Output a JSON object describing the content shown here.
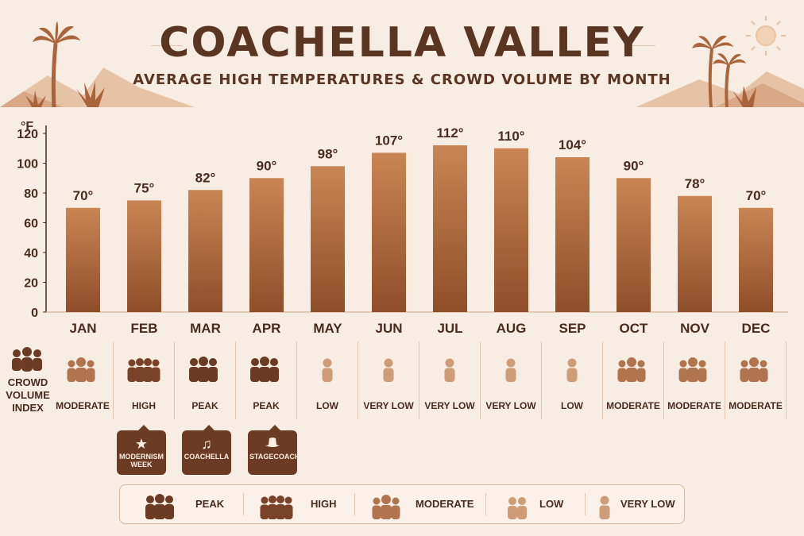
{
  "header": {
    "title": "COACHELLA VALLEY",
    "subtitle": "AVERAGE HIGH TEMPERATURES & CROWD VOLUME BY MONTH"
  },
  "colors": {
    "bar_top": "#c98553",
    "bar_bottom": "#8f4e2a",
    "peak": "#6b3b23",
    "high": "#7a4329",
    "moderate": "#b0744f",
    "low": "#cf9c78",
    "very_low": "#cf9c78",
    "background": "#f8ede3"
  },
  "chart_data": {
    "type": "bar",
    "title": "COACHELLA VALLEY",
    "subtitle": "AVERAGE HIGH TEMPERATURES & CROWD VOLUME BY MONTH",
    "ylabel": "°F",
    "xlabel": "",
    "ylim": [
      0,
      120
    ],
    "yticks": [
      0,
      20,
      40,
      60,
      80,
      100,
      120
    ],
    "categories": [
      "JAN",
      "FEB",
      "MAR",
      "APR",
      "MAY",
      "JUN",
      "JUL",
      "AUG",
      "SEP",
      "OCT",
      "NOV",
      "DEC"
    ],
    "values": [
      70,
      75,
      82,
      90,
      98,
      107,
      112,
      110,
      104,
      90,
      78,
      70
    ],
    "value_labels": [
      "70°",
      "75°",
      "82°",
      "90°",
      "98°",
      "107°",
      "112°",
      "110°",
      "104°",
      "90°",
      "78°",
      "70°"
    ],
    "grid": false
  },
  "crowd": {
    "label_lines": [
      "CROWD",
      "VOLUME",
      "INDEX"
    ],
    "levels": [
      "MODERATE",
      "HIGH",
      "PEAK",
      "PEAK",
      "LOW",
      "VERY LOW",
      "VERY LOW",
      "VERY LOW",
      "LOW",
      "MODERATE",
      "MODERATE",
      "MODERATE"
    ],
    "icons": [
      "moderate-crowd-icon",
      "high-crowd-icon",
      "peak-crowd-icon",
      "peak-crowd-icon",
      "low-crowd-icon",
      "very-low-crowd-icon",
      "very-low-crowd-icon",
      "very-low-crowd-icon",
      "low-crowd-icon",
      "moderate-crowd-icon",
      "moderate-crowd-icon",
      "moderate-crowd-icon"
    ]
  },
  "events": [
    {
      "label_1": "MODERNISM",
      "label_2": "WEEK",
      "icon": "star-icon",
      "month": "FEB"
    },
    {
      "label_1": "COACHELLA",
      "label_2": "",
      "icon": "music-note-icon",
      "month": "MAR"
    },
    {
      "label_1": "STAGECOACH",
      "label_2": "",
      "icon": "cowboy-hat-icon",
      "month": "APR"
    }
  ],
  "legend": [
    {
      "label": "PEAK",
      "icon": "peak-crowd-icon"
    },
    {
      "label": "HIGH",
      "icon": "high-crowd-icon"
    },
    {
      "label": "MODERATE",
      "icon": "moderate-crowd-icon"
    },
    {
      "label": "LOW",
      "icon": "low-crowd-icon"
    },
    {
      "label": "VERY LOW",
      "icon": "very-low-crowd-icon"
    }
  ]
}
